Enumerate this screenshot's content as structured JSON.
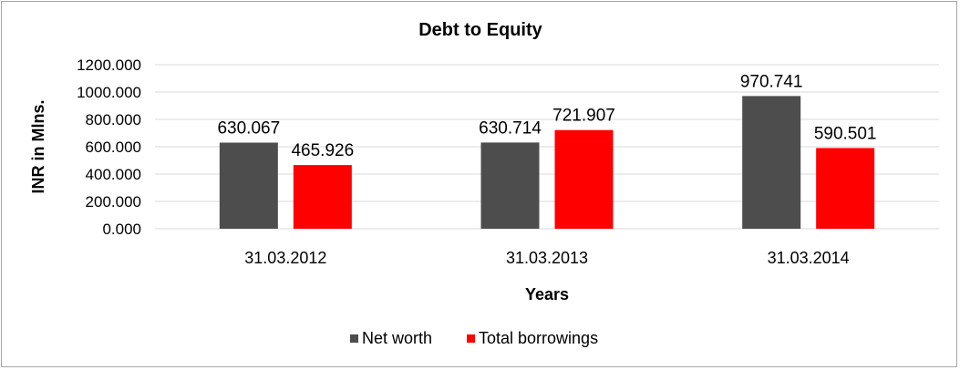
{
  "chart_data": {
    "type": "bar",
    "title": "Debt to Equity",
    "xlabel": "Years",
    "ylabel": "INR in Mlns.",
    "categories": [
      "31.03.2012",
      "31.03.2013",
      "31.03.2014"
    ],
    "series": [
      {
        "name": "Net worth",
        "values": [
          630.067,
          630.714,
          970.741
        ],
        "labels": [
          "630.067",
          "630.714",
          "970.741"
        ],
        "color": "#4d4d4d"
      },
      {
        "name": "Total borrowings",
        "values": [
          465.926,
          721.907,
          590.501
        ],
        "labels": [
          "465.926",
          "721.907",
          "590.501"
        ],
        "color": "#ff0000"
      }
    ],
    "ylim": [
      0,
      1200
    ],
    "yticks": [
      0,
      200,
      400,
      600,
      800,
      1000,
      1200
    ],
    "ytick_labels": [
      "0.000",
      "200.000",
      "400.000",
      "600.000",
      "800.000",
      "1000.000",
      "1200.000"
    ],
    "grid": true,
    "legend": "bottom"
  }
}
